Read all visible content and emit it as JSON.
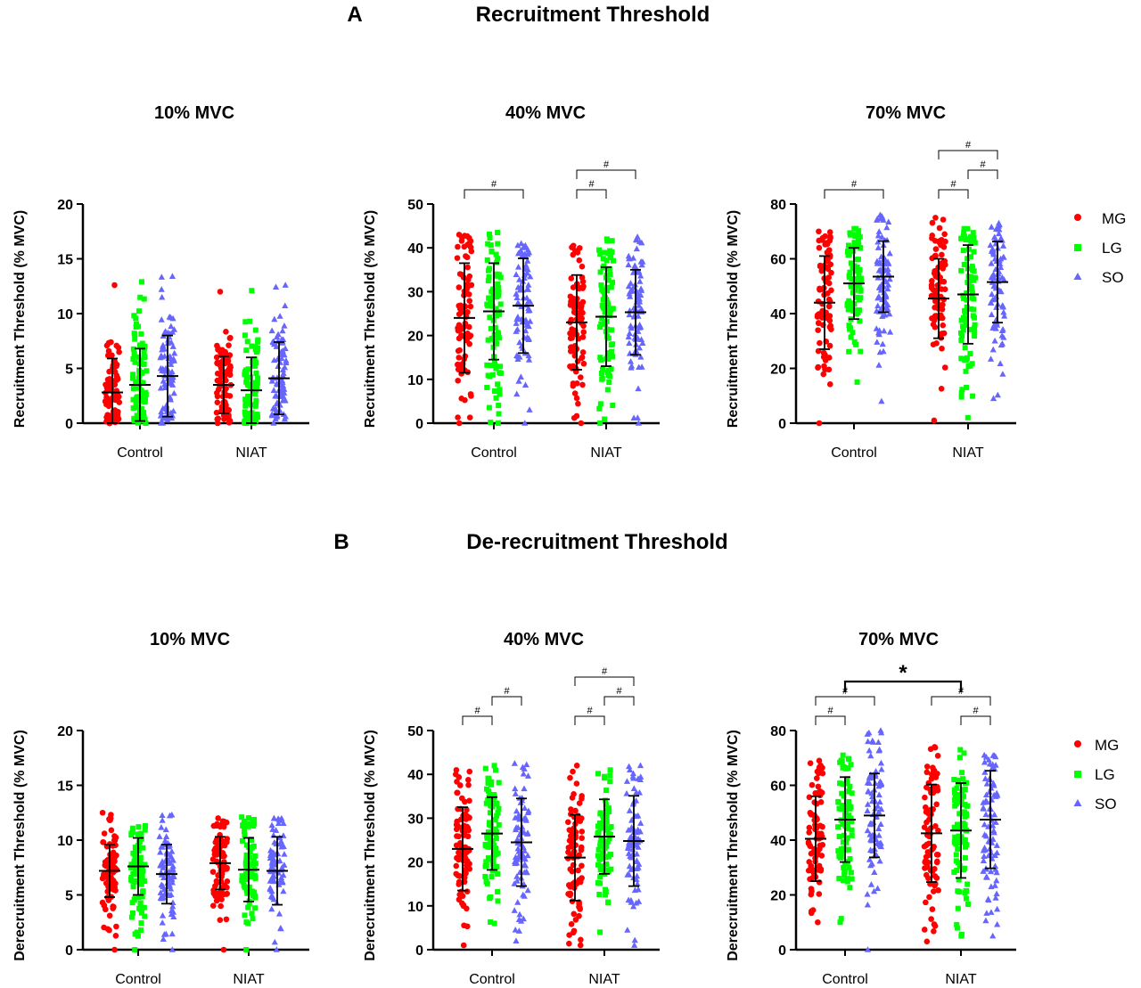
{
  "figure": {
    "sections": [
      {
        "letter": "A",
        "title": "Recruitment Threshold"
      },
      {
        "letter": "B",
        "title": "De-recruitment Threshold"
      }
    ],
    "legend": [
      {
        "label": "MG",
        "color": "#ff0000",
        "marker": "circle"
      },
      {
        "label": "LG",
        "color": "#00ff00",
        "marker": "square"
      },
      {
        "label": "SO",
        "color": "#6666ff",
        "marker": "triangle"
      }
    ],
    "colors": {
      "MG": "#ff0000",
      "LG": "#00ff00",
      "SO": "#6666ff",
      "bars": "#000000"
    }
  },
  "chart_data": [
    {
      "type": "scatter",
      "title": "10% MVC",
      "ylabel": "Recruitment Threshold (% MVC)",
      "categories": [
        "Control",
        "NIAT"
      ],
      "ylim": [
        0,
        20
      ],
      "yticks": [
        0,
        5,
        10,
        15,
        20
      ],
      "series": [
        {
          "name": "MG",
          "mean": [
            2.8,
            3.5
          ],
          "sd": [
            3.1,
            2.6
          ],
          "min": [
            0,
            0
          ],
          "max": [
            12.6,
            12.0
          ]
        },
        {
          "name": "LG",
          "mean": [
            3.5,
            3.0
          ],
          "sd": [
            3.3,
            3.0
          ],
          "min": [
            0,
            0
          ],
          "max": [
            12.9,
            12.1
          ]
        },
        {
          "name": "SO",
          "mean": [
            4.3,
            4.1
          ],
          "sd": [
            3.7,
            3.3
          ],
          "min": [
            0,
            0
          ],
          "max": [
            13.4,
            12.6
          ]
        }
      ],
      "brackets": [],
      "star": null
    },
    {
      "type": "scatter",
      "title": "40% MVC",
      "ylabel": "Recruitment Threshold (% MVC)",
      "categories": [
        "Control",
        "NIAT"
      ],
      "ylim": [
        0,
        50
      ],
      "yticks": [
        0,
        10,
        20,
        30,
        40,
        50
      ],
      "series": [
        {
          "name": "MG",
          "mean": [
            24,
            23
          ],
          "sd": [
            12.5,
            10.8
          ],
          "min": [
            0,
            0
          ],
          "max": [
            43,
            40.5
          ]
        },
        {
          "name": "LG",
          "mean": [
            25.5,
            24.3
          ],
          "sd": [
            11,
            11.3
          ],
          "min": [
            0,
            0
          ],
          "max": [
            43.5,
            42
          ]
        },
        {
          "name": "SO",
          "mean": [
            26.8,
            25.3
          ],
          "sd": [
            10.8,
            9.7
          ],
          "min": [
            0,
            0
          ],
          "max": [
            41,
            42.5
          ]
        }
      ],
      "brackets": [
        {
          "group": 0,
          "from": "MG",
          "to": "SO",
          "label": "#"
        },
        {
          "group": 1,
          "from": "MG",
          "to": "LG",
          "label": "#"
        },
        {
          "group": 1,
          "from": "MG",
          "to": "SO",
          "label": "#"
        }
      ],
      "star": null
    },
    {
      "type": "scatter",
      "title": "70% MVC",
      "ylabel": "Recruitment Threshold (% MVC)",
      "categories": [
        "Control",
        "NIAT"
      ],
      "ylim": [
        0,
        80
      ],
      "yticks": [
        0,
        20,
        40,
        60,
        80
      ],
      "series": [
        {
          "name": "MG",
          "mean": [
            44,
            45.5
          ],
          "sd": [
            17,
            14.5
          ],
          "min": [
            0,
            1
          ],
          "max": [
            70,
            75
          ]
        },
        {
          "name": "LG",
          "mean": [
            51,
            47
          ],
          "sd": [
            13,
            18
          ],
          "min": [
            15,
            2
          ],
          "max": [
            71,
            71
          ]
        },
        {
          "name": "SO",
          "mean": [
            53.5,
            51.5
          ],
          "sd": [
            13,
            14.8
          ],
          "min": [
            8,
            9
          ],
          "max": [
            76,
            73
          ]
        }
      ],
      "brackets": [
        {
          "group": 0,
          "from": "MG",
          "to": "SO",
          "label": "#"
        },
        {
          "group": 1,
          "from": "MG",
          "to": "LG",
          "label": "#"
        },
        {
          "group": 1,
          "from": "LG",
          "to": "SO",
          "label": "#"
        },
        {
          "group": 1,
          "from": "MG",
          "to": "SO",
          "label": "#"
        }
      ],
      "star": null
    },
    {
      "type": "scatter",
      "title": "10% MVC",
      "ylabel": "Derecruitment Threshold (% MVC)",
      "categories": [
        "Control",
        "NIAT"
      ],
      "ylim": [
        0,
        20
      ],
      "yticks": [
        0,
        5,
        10,
        15,
        20
      ],
      "series": [
        {
          "name": "MG",
          "mean": [
            7.2,
            7.9
          ],
          "sd": [
            2.4,
            2.4
          ],
          "min": [
            0,
            0
          ],
          "max": [
            12.5,
            12
          ]
        },
        {
          "name": "LG",
          "mean": [
            7.6,
            7.3
          ],
          "sd": [
            2.6,
            2.9
          ],
          "min": [
            0,
            0
          ],
          "max": [
            11.3,
            12.1
          ]
        },
        {
          "name": "SO",
          "mean": [
            6.9,
            7.2
          ],
          "sd": [
            2.7,
            3.1
          ],
          "min": [
            0,
            0
          ],
          "max": [
            12.3,
            12.0
          ]
        }
      ],
      "brackets": [],
      "star": null
    },
    {
      "type": "scatter",
      "title": "40% MVC",
      "ylabel": "Derecruitment Threshold (% MVC)",
      "categories": [
        "Control",
        "NIAT"
      ],
      "ylim": [
        0,
        50
      ],
      "yticks": [
        0,
        10,
        20,
        30,
        40,
        50
      ],
      "series": [
        {
          "name": "MG",
          "mean": [
            23,
            21
          ],
          "sd": [
            9.5,
            9.8
          ],
          "min": [
            1,
            1
          ],
          "max": [
            41,
            42
          ]
        },
        {
          "name": "LG",
          "mean": [
            26.5,
            25.8
          ],
          "sd": [
            8.3,
            8.5
          ],
          "min": [
            6,
            4
          ],
          "max": [
            42,
            41
          ]
        },
        {
          "name": "SO",
          "mean": [
            24.5,
            24.8
          ],
          "sd": [
            10,
            10.3
          ],
          "min": [
            2,
            1
          ],
          "max": [
            42.5,
            42
          ]
        }
      ],
      "brackets": [
        {
          "group": 0,
          "from": "MG",
          "to": "LG",
          "label": "#"
        },
        {
          "group": 0,
          "from": "LG",
          "to": "SO",
          "label": "#"
        },
        {
          "group": 1,
          "from": "MG",
          "to": "LG",
          "label": "#"
        },
        {
          "group": 1,
          "from": "LG",
          "to": "SO",
          "label": "#"
        },
        {
          "group": 1,
          "from": "MG",
          "to": "SO",
          "label": "#"
        }
      ],
      "star": null
    },
    {
      "type": "scatter",
      "title": "70% MVC",
      "ylabel": "Derecruitment Threshold (% MVC)",
      "categories": [
        "Control",
        "NIAT"
      ],
      "ylim": [
        0,
        80
      ],
      "yticks": [
        0,
        20,
        40,
        60,
        80
      ],
      "series": [
        {
          "name": "MG",
          "mean": [
            40.5,
            42.5
          ],
          "sd": [
            15.5,
            17.8
          ],
          "min": [
            10,
            3
          ],
          "max": [
            69,
            74
          ]
        },
        {
          "name": "LG",
          "mean": [
            47.5,
            43.5
          ],
          "sd": [
            15.5,
            17.3
          ],
          "min": [
            10,
            5
          ],
          "max": [
            71,
            73
          ]
        },
        {
          "name": "SO",
          "mean": [
            49,
            47.5
          ],
          "sd": [
            15.3,
            17.8
          ],
          "min": [
            0,
            5
          ],
          "max": [
            80,
            71
          ]
        }
      ],
      "brackets": [
        {
          "group": 0,
          "from": "MG",
          "to": "LG",
          "label": "#"
        },
        {
          "group": 0,
          "from": "MG",
          "to": "SO",
          "label": "#"
        },
        {
          "group": 1,
          "from": "LG",
          "to": "SO",
          "label": "#"
        },
        {
          "group": 1,
          "from": "MG",
          "to": "SO",
          "label": "#"
        }
      ],
      "star": {
        "label": "*",
        "from_group": 0,
        "to_group": 1
      }
    }
  ]
}
